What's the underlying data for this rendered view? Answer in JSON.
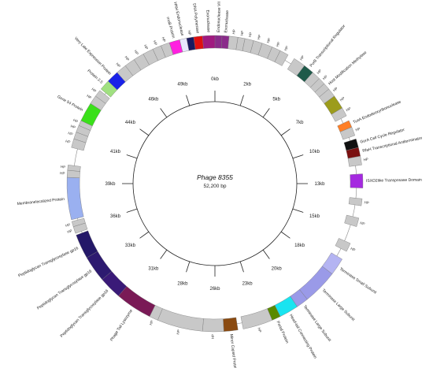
{
  "map": {
    "title": "Phage 8355",
    "subtitle": "52,200 bp",
    "genome_length_kb": 52.2,
    "ticks": [
      "0kb",
      "2kb",
      "5kb",
      "7kb",
      "10kb",
      "13kb",
      "15kb",
      "18kb",
      "20kb",
      "23kb",
      "26kb",
      "28kb",
      "31kb",
      "33kb",
      "36kb",
      "39kb",
      "41kb",
      "44kb",
      "46kb",
      "49kb"
    ],
    "genes": [
      {
        "label": "Endonuclease VII",
        "start": 0.0,
        "end": 0.4,
        "color": "#8a2b8a"
      },
      {
        "label": "Exonuclease",
        "start": 0.4,
        "end": 0.8,
        "color": "#8a2b8a"
      },
      {
        "label": "HP",
        "start": 0.8,
        "end": 1.3,
        "color": "#c8c8c8"
      },
      {
        "label": "HP",
        "start": 1.3,
        "end": 1.7,
        "color": "#c8c8c8"
      },
      {
        "label": "HP",
        "start": 1.7,
        "end": 2.2,
        "color": "#c8c8c8"
      },
      {
        "label": "HP",
        "start": 2.2,
        "end": 2.7,
        "color": "#c8c8c8"
      },
      {
        "label": "HP",
        "start": 2.7,
        "end": 3.3,
        "color": "#c8c8c8"
      },
      {
        "label": "HP",
        "start": 3.3,
        "end": 3.8,
        "color": "#c8c8c8"
      },
      {
        "label": "HP",
        "start": 3.8,
        "end": 4.3,
        "color": "#c8c8c8"
      },
      {
        "label": "HP",
        "start": 4.7,
        "end": 5.4,
        "color": "#c8c8c8"
      },
      {
        "label": "PvrB Transcriptional Regulator",
        "start": 5.4,
        "end": 6.0,
        "color": "#1f5a4a"
      },
      {
        "label": "HP",
        "start": 6.0,
        "end": 6.5,
        "color": "#c8c8c8"
      },
      {
        "label": "HP",
        "start": 6.5,
        "end": 6.9,
        "color": "#c8c8c8"
      },
      {
        "label": "Host Modification Methylase",
        "start": 6.9,
        "end": 7.3,
        "color": "#c8c8c8"
      },
      {
        "label": "HP",
        "start": 7.3,
        "end": 7.8,
        "color": "#c8c8c8"
      },
      {
        "label": "HP",
        "start": 7.8,
        "end": 8.6,
        "color": "#9c9c1c"
      },
      {
        "label": "HP",
        "start": 8.6,
        "end": 9.1,
        "color": "#c8c8c8"
      },
      {
        "label": "TusA Endodeoxyribonuclease",
        "start": 9.4,
        "end": 9.8,
        "color": "#ff7f27"
      },
      {
        "label": "HP",
        "start": 9.8,
        "end": 10.3,
        "color": "#c8c8c8"
      },
      {
        "label": "GorA Cell Cycle Regulator",
        "start": 10.5,
        "end": 11.0,
        "color": "#111111"
      },
      {
        "label": "RfaH Transcriptional Antiterminator",
        "start": 11.0,
        "end": 11.5,
        "color": "#7a1010"
      },
      {
        "label": "HP",
        "start": 11.5,
        "end": 12.0,
        "color": "#c8c8c8"
      },
      {
        "label": "ISXO2like Transposase Domain",
        "start": 12.5,
        "end": 13.3,
        "color": "#a52ae0"
      },
      {
        "label": "HP",
        "start": 13.9,
        "end": 14.3,
        "color": "#c8c8c8"
      },
      {
        "label": "HP",
        "start": 15.0,
        "end": 15.5,
        "color": "#c8c8c8"
      },
      {
        "label": "HP",
        "start": 16.5,
        "end": 17.0,
        "color": "#c8c8c8"
      },
      {
        "label": "Terminase Small Subunit",
        "start": 17.5,
        "end": 18.5,
        "color": "#b4b4f2"
      },
      {
        "label": "Terminase Large Subunit",
        "start": 18.5,
        "end": 20.5,
        "color": "#9a9ae8"
      },
      {
        "label": "Terminase Large Subunit",
        "start": 20.5,
        "end": 21.2,
        "color": "#9a9ae8"
      },
      {
        "label": "Head-tail Connecting Protein",
        "start": 21.2,
        "end": 22.3,
        "color": "#19e4f0"
      },
      {
        "label": "Portal Protein",
        "start": 22.3,
        "end": 22.8,
        "color": "#5a8a00"
      },
      {
        "label": "HP",
        "start": 22.8,
        "end": 24.5,
        "color": "#c8c8c8"
      },
      {
        "label": "Minor Capsid Protein",
        "start": 24.8,
        "end": 25.6,
        "color": "#8a4a10"
      },
      {
        "label": "HP",
        "start": 25.6,
        "end": 26.8,
        "color": "#c8c8c8"
      },
      {
        "label": "HP",
        "start": 26.8,
        "end": 29.4,
        "color": "#c8c8c8"
      },
      {
        "label": "HP",
        "start": 29.4,
        "end": 29.9,
        "color": "#c8c8c8"
      },
      {
        "label": "Phage Tail Lysozyme",
        "start": 29.9,
        "end": 32.0,
        "color": "#7a1a56"
      },
      {
        "label": "Peptidoglycan Transglycosylase gp16",
        "start": 32.0,
        "end": 33.3,
        "color": "#3a1a78"
      },
      {
        "label": "Peptidoglycan Transglycosylase gp16",
        "start": 33.3,
        "end": 34.8,
        "color": "#2d1a70"
      },
      {
        "label": "Peptidoglycan Transglycosylase gp16",
        "start": 34.8,
        "end": 36.2,
        "color": "#241868"
      },
      {
        "label": "HP",
        "start": 36.3,
        "end": 36.7,
        "color": "#c8c8c8"
      },
      {
        "label": "HP",
        "start": 36.7,
        "end": 37.0,
        "color": "#c8c8c8"
      },
      {
        "label": "Membranelocalized Protein",
        "start": 37.1,
        "end": 39.5,
        "color": "#9ab0f0"
      },
      {
        "label": "HP",
        "start": 39.5,
        "end": 39.9,
        "color": "#c8c8c8"
      },
      {
        "label": "HP",
        "start": 39.9,
        "end": 40.2,
        "color": "#c8c8c8"
      },
      {
        "label": "HP",
        "start": 41.2,
        "end": 41.7,
        "color": "#c8c8c8"
      },
      {
        "label": "HP",
        "start": 41.7,
        "end": 42.1,
        "color": "#c8c8c8"
      },
      {
        "label": "HP",
        "start": 42.1,
        "end": 42.5,
        "color": "#c8c8c8"
      },
      {
        "label": "HP",
        "start": 42.5,
        "end": 42.8,
        "color": "#c8c8c8"
      },
      {
        "label": "Gene 54 Protein",
        "start": 42.8,
        "end": 43.9,
        "color": "#3ae01a"
      },
      {
        "label": "HP",
        "start": 43.9,
        "end": 44.4,
        "color": "#c8c8c8"
      },
      {
        "label": "HP",
        "start": 44.4,
        "end": 44.8,
        "color": "#c8c8c8"
      },
      {
        "label": "Protein 2.5",
        "start": 44.9,
        "end": 45.5,
        "color": "#a0e080"
      },
      {
        "label": "Very Late Expression Protein",
        "start": 45.5,
        "end": 46.2,
        "color": "#1a22e8"
      },
      {
        "label": "HP",
        "start": 46.2,
        "end": 46.8,
        "color": "#c8c8c8"
      },
      {
        "label": "HP",
        "start": 46.8,
        "end": 47.4,
        "color": "#c8c8c8"
      },
      {
        "label": "HP",
        "start": 47.4,
        "end": 48.0,
        "color": "#c8c8c8"
      },
      {
        "label": "HP",
        "start": 48.0,
        "end": 48.6,
        "color": "#c8c8c8"
      },
      {
        "label": "HP",
        "start": 48.6,
        "end": 49.1,
        "color": "#c8c8c8"
      },
      {
        "label": "HP",
        "start": 49.1,
        "end": 49.6,
        "color": "#c8c8c8"
      },
      {
        "label": "rnoB Protein",
        "start": 49.6,
        "end": 50.2,
        "color": "#ff20e0"
      },
      {
        "label": "HNH Endonuclease",
        "start": 50.2,
        "end": 50.6,
        "color": "#e8e8ff"
      },
      {
        "label": "HP",
        "start": 50.6,
        "end": 51.0,
        "color": "#1a1a60"
      },
      {
        "label": "DNA Polymerase",
        "start": 51.0,
        "end": 51.5,
        "color": "#e01010"
      },
      {
        "label": "Exonuclease",
        "start": 51.5,
        "end": 52.2,
        "color": "#a01a80"
      }
    ]
  }
}
